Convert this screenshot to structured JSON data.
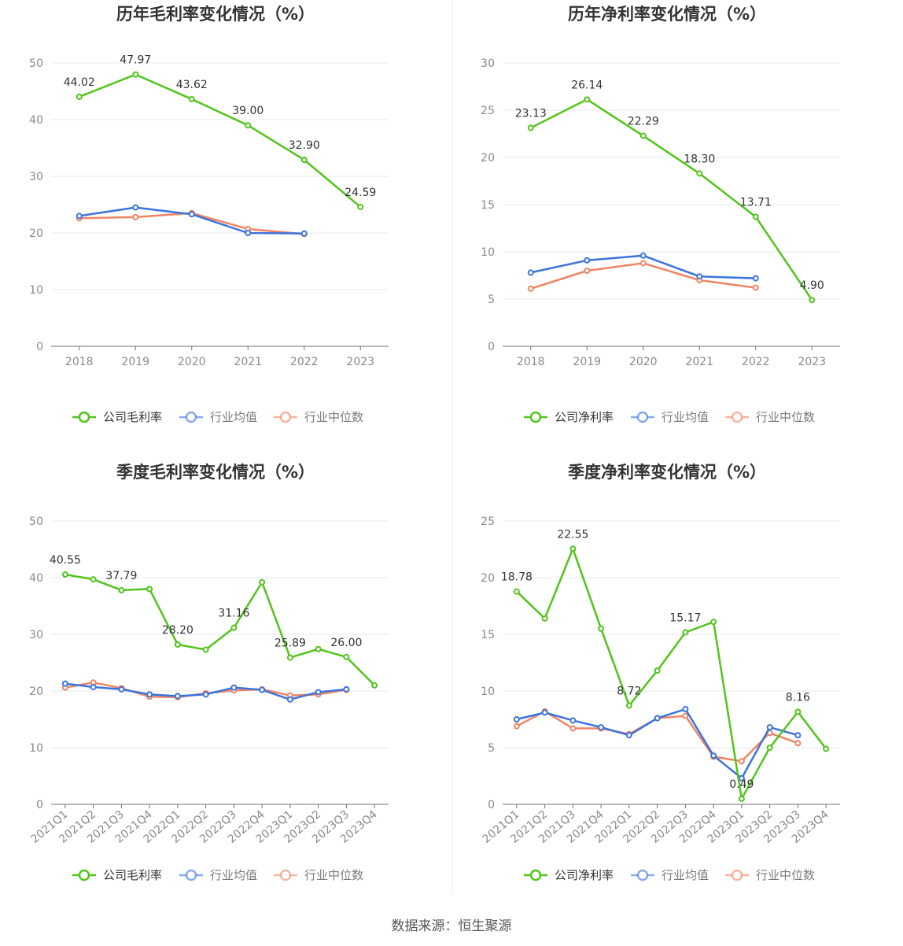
{
  "colors": {
    "company": "#52c41a",
    "industry_avg": "#3b73dd",
    "industry_median": "#f08462"
  },
  "source": "数据来源：恒生聚源",
  "chart_data": [
    {
      "type": "line",
      "title": "历年毛利率变化情况（%）",
      "categories": [
        "2018",
        "2019",
        "2020",
        "2021",
        "2022",
        "2023"
      ],
      "ylim": [
        0,
        50
      ],
      "yticks": [
        0,
        10,
        20,
        30,
        40,
        50
      ],
      "series": [
        {
          "name": "公司毛利率",
          "values": [
            44.02,
            47.97,
            43.62,
            39.0,
            32.9,
            24.59
          ]
        },
        {
          "name": "行业均值",
          "values": [
            23.0,
            24.5,
            23.3,
            20.0,
            19.9,
            null
          ]
        },
        {
          "name": "行业中位数",
          "values": [
            22.6,
            22.8,
            23.5,
            20.7,
            19.8,
            null
          ]
        }
      ],
      "data_labels": [
        {
          "index": 0,
          "text": "44.02"
        },
        {
          "index": 1,
          "text": "47.97"
        },
        {
          "index": 2,
          "text": "43.62"
        },
        {
          "index": 3,
          "text": "39.00"
        },
        {
          "index": 4,
          "text": "32.90"
        },
        {
          "index": 5,
          "text": "24.59"
        }
      ],
      "legend": "bottom"
    },
    {
      "type": "line",
      "title": "历年净利率变化情况（%）",
      "categories": [
        "2018",
        "2019",
        "2020",
        "2021",
        "2022",
        "2023"
      ],
      "ylim": [
        0,
        30
      ],
      "yticks": [
        0,
        5,
        10,
        15,
        20,
        25,
        30
      ],
      "series": [
        {
          "name": "公司净利率",
          "values": [
            23.13,
            26.14,
            22.29,
            18.3,
            13.71,
            4.9
          ]
        },
        {
          "name": "行业均值",
          "values": [
            7.8,
            9.1,
            9.6,
            7.4,
            7.2,
            null
          ]
        },
        {
          "name": "行业中位数",
          "values": [
            6.1,
            8.0,
            8.8,
            7.0,
            6.2,
            null
          ]
        }
      ],
      "data_labels": [
        {
          "index": 0,
          "text": "23.13"
        },
        {
          "index": 1,
          "text": "26.14"
        },
        {
          "index": 2,
          "text": "22.29"
        },
        {
          "index": 3,
          "text": "18.30"
        },
        {
          "index": 4,
          "text": "13.71"
        },
        {
          "index": 5,
          "text": "4.90"
        }
      ],
      "legend": "bottom"
    },
    {
      "type": "line",
      "title": "季度毛利率变化情况（%）",
      "categories": [
        "2021Q1",
        "2021Q2",
        "2021Q3",
        "2021Q4",
        "2022Q1",
        "2022Q2",
        "2022Q3",
        "2022Q4",
        "2023Q1",
        "2023Q2",
        "2023Q3",
        "2023Q4"
      ],
      "ylim": [
        0,
        50
      ],
      "yticks": [
        0,
        10,
        20,
        30,
        40,
        50
      ],
      "series": [
        {
          "name": "公司毛利率",
          "values": [
            40.55,
            39.7,
            37.79,
            38.0,
            28.2,
            27.3,
            31.16,
            39.2,
            25.89,
            27.4,
            26.0,
            21.0
          ]
        },
        {
          "name": "行业均值",
          "values": [
            21.3,
            20.7,
            20.3,
            19.4,
            19.1,
            19.4,
            20.6,
            20.2,
            18.5,
            19.8,
            20.3,
            null
          ]
        },
        {
          "name": "行业中位数",
          "values": [
            20.6,
            21.5,
            20.5,
            19.0,
            18.9,
            19.6,
            20.1,
            20.3,
            19.2,
            19.4,
            20.2,
            null
          ]
        }
      ],
      "data_labels": [
        {
          "index": 0,
          "text": "40.55"
        },
        {
          "index": 2,
          "text": "37.79"
        },
        {
          "index": 4,
          "text": "28.20"
        },
        {
          "index": 6,
          "text": "31.16"
        },
        {
          "index": 8,
          "text": "25.89"
        },
        {
          "index": 10,
          "text": "26.00"
        }
      ],
      "legend": "bottom"
    },
    {
      "type": "line",
      "title": "季度净利率变化情况（%）",
      "categories": [
        "2021Q1",
        "2021Q2",
        "2021Q3",
        "2021Q4",
        "2022Q1",
        "2022Q2",
        "2022Q3",
        "2022Q4",
        "2023Q1",
        "2023Q2",
        "2023Q3",
        "2023Q4"
      ],
      "ylim": [
        0,
        25
      ],
      "yticks": [
        0,
        5,
        10,
        15,
        20,
        25
      ],
      "series": [
        {
          "name": "公司净利率",
          "values": [
            18.78,
            16.4,
            22.55,
            15.5,
            8.72,
            11.8,
            15.17,
            16.1,
            0.49,
            5.0,
            8.16,
            4.9
          ]
        },
        {
          "name": "行业均值",
          "values": [
            7.5,
            8.1,
            7.4,
            6.8,
            6.1,
            7.6,
            8.4,
            4.3,
            2.3,
            6.8,
            6.1,
            null
          ]
        },
        {
          "name": "行业中位数",
          "values": [
            6.9,
            8.2,
            6.7,
            6.7,
            6.2,
            7.6,
            7.8,
            4.2,
            3.8,
            6.3,
            5.4,
            null
          ]
        }
      ],
      "data_labels": [
        {
          "index": 0,
          "text": "18.78"
        },
        {
          "index": 2,
          "text": "22.55"
        },
        {
          "index": 4,
          "text": "8.72"
        },
        {
          "index": 6,
          "text": "15.17"
        },
        {
          "index": 8,
          "text": "0.49"
        },
        {
          "index": 10,
          "text": "8.16"
        }
      ],
      "legend": "bottom"
    }
  ]
}
